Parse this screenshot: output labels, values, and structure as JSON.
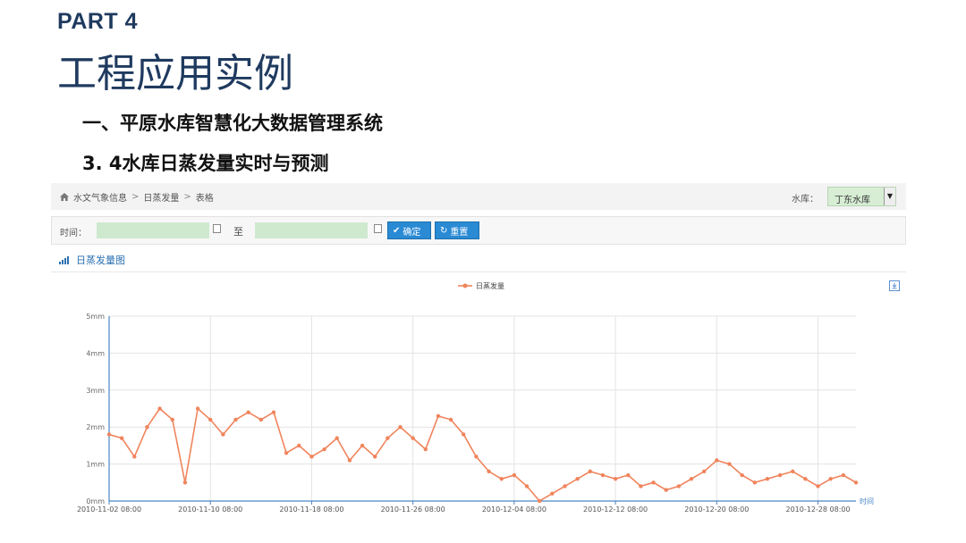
{
  "slide": {
    "part": "PART 4",
    "title": "工程应用实例",
    "subtitle1": "一、平原水库智慧化大数据管理系统",
    "subtitle2": "3. 4水库日蒸发量实时与预测"
  },
  "breadcrumb": {
    "items": [
      "水文气象信息",
      "日蒸发量",
      "表格"
    ],
    "separator": ">"
  },
  "reservoir": {
    "label": "水库：",
    "selected": "丁东水库"
  },
  "filter": {
    "time_label": "时间：",
    "start_value": "",
    "end_value": "",
    "to_label": "至",
    "ok_label": "确定",
    "reset_label": "重置"
  },
  "panel": {
    "title": "日蒸发量图"
  },
  "chart_data": {
    "type": "line",
    "title": "",
    "xlabel": "时间",
    "ylabel": "",
    "legend": {
      "entries": [
        "日蒸发量"
      ],
      "position": "top-center"
    },
    "y_ticks": [
      "0mm",
      "1mm",
      "2mm",
      "3mm",
      "4mm",
      "5mm"
    ],
    "ylim": [
      0,
      5
    ],
    "x_ticks": [
      "2010-11-02 08:00",
      "2010-11-10 08:00",
      "2010-11-18 08:00",
      "2010-11-26 08:00",
      "2010-12-04 08:00",
      "2010-12-12 08:00",
      "2010-12-20 08:00",
      "2010-12-28 08:00"
    ],
    "x_start": "2010-11-02 08:00",
    "grid": true,
    "colors": {
      "series": "#f0845c",
      "axis": "#4a86c5",
      "grid": "#e3e3e3"
    },
    "series": [
      {
        "name": "日蒸发量",
        "values": [
          1.8,
          1.7,
          1.2,
          2.0,
          2.5,
          2.2,
          0.5,
          2.5,
          2.2,
          1.8,
          2.2,
          2.4,
          2.2,
          2.4,
          1.3,
          1.5,
          1.2,
          1.4,
          1.7,
          1.1,
          1.5,
          1.2,
          1.7,
          2.0,
          1.7,
          1.4,
          2.3,
          2.2,
          1.8,
          1.2,
          0.8,
          0.6,
          0.7,
          0.4,
          0.0,
          0.2,
          0.4,
          0.6,
          0.8,
          0.7,
          0.6,
          0.7,
          0.4,
          0.5,
          0.3,
          0.4,
          0.6,
          0.8,
          1.1,
          1.0,
          0.7,
          0.5,
          0.6,
          0.7,
          0.8,
          0.6,
          0.4,
          0.6,
          0.7,
          0.5
        ]
      }
    ]
  }
}
